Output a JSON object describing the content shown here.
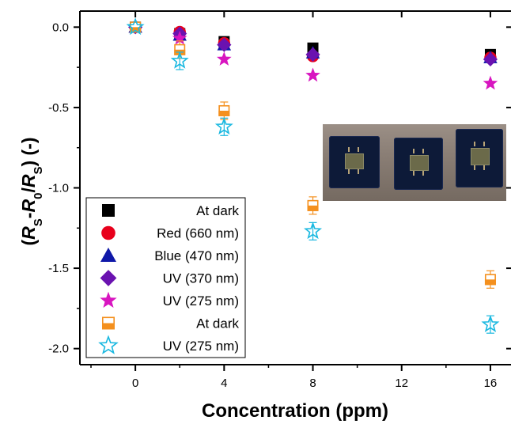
{
  "chart_data": {
    "type": "scatter",
    "xlabel": "Concentration (ppm)",
    "ylabel": "(Rs-R0/Rs) (-)",
    "ylabel_parts": [
      "(",
      "R",
      "S",
      "-",
      "R",
      "0",
      "/",
      "R",
      "S",
      ") (-)"
    ],
    "xlim": [
      -2.5,
      17
    ],
    "ylim": [
      -2.1,
      0.1
    ],
    "xticks": [
      0,
      4,
      8,
      12,
      16
    ],
    "xtick_labels": [
      "0",
      "4",
      "8",
      "12",
      "16"
    ],
    "yticks": [
      0.0,
      -0.5,
      -1.0,
      -1.5,
      -2.0
    ],
    "ytick_labels": [
      "0.0",
      "-0.5",
      "-1.0",
      "-1.5",
      "-2.0"
    ],
    "grid": false,
    "legend_position": "bottom-left",
    "series": [
      {
        "name": "At dark",
        "marker": "square",
        "color": "#000000",
        "x": [
          0,
          2,
          4,
          8,
          16
        ],
        "y": [
          0.0,
          -0.04,
          -0.09,
          -0.13,
          -0.17
        ]
      },
      {
        "name": "Red (660 nm)",
        "marker": "circle",
        "color": "#e8001c",
        "x": [
          0,
          2,
          4,
          8,
          16
        ],
        "y": [
          0.0,
          -0.03,
          -0.1,
          -0.18,
          -0.19
        ]
      },
      {
        "name": "Blue (470 nm)",
        "marker": "triangle",
        "color": "#0f18a8",
        "x": [
          0,
          2,
          4,
          8,
          16
        ],
        "y": [
          0.0,
          -0.05,
          -0.11,
          -0.16,
          -0.19
        ]
      },
      {
        "name": "UV (370 nm)",
        "marker": "diamond",
        "color": "#6a12b0",
        "x": [
          0,
          2,
          4,
          8,
          16
        ],
        "y": [
          0.0,
          -0.04,
          -0.11,
          -0.17,
          -0.2
        ]
      },
      {
        "name": "UV (275 nm)",
        "marker": "star",
        "color": "#d815c0",
        "x": [
          0,
          2,
          4,
          8,
          16
        ],
        "y": [
          0.0,
          -0.07,
          -0.2,
          -0.3,
          -0.35
        ]
      },
      {
        "name": "At dark",
        "marker": "half-square",
        "color": "#f4901e",
        "x": [
          0,
          2,
          4,
          8,
          16
        ],
        "y": [
          0.0,
          -0.14,
          -0.52,
          -1.11,
          -1.57
        ]
      },
      {
        "name": "UV (275 nm)",
        "marker": "open-star",
        "color": "#19b8e0",
        "x": [
          0,
          2,
          4,
          8,
          16
        ],
        "y": [
          0.0,
          -0.21,
          -0.62,
          -1.27,
          -1.85
        ]
      }
    ]
  }
}
